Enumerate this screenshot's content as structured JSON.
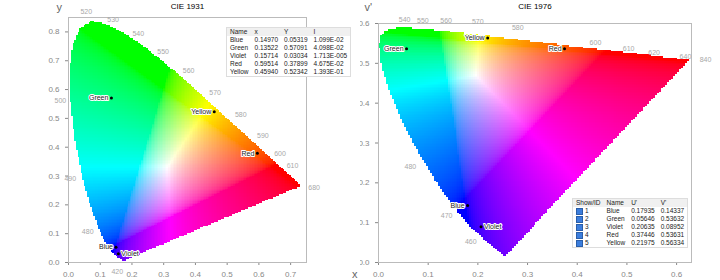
{
  "chart_data": [
    {
      "type": "scatter",
      "title": "CIE 1931",
      "x_label": "x",
      "y_label": "y",
      "xlim": [
        0,
        0.75
      ],
      "ylim": [
        0,
        0.85
      ],
      "xticks": [
        {
          "value": 0,
          "label": "0.0"
        },
        0.1,
        0.2,
        0.3,
        0.4,
        0.5,
        0.6,
        0.7
      ],
      "yticks": [
        {
          "value": 0,
          "label": "0.0"
        },
        0.1,
        0.2,
        0.3,
        0.4,
        0.5,
        0.6,
        0.7,
        0.8
      ],
      "locus": {
        "x": [
          0.1741,
          0.1714,
          0.1644,
          0.144,
          0.1355,
          0.1241,
          0.1096,
          0.0913,
          0.0687,
          0.0454,
          0.0235,
          0.0082,
          0.0039,
          0.0139,
          0.0389,
          0.0743,
          0.1142,
          0.1547,
          0.2296,
          0.3016,
          0.3731,
          0.4441,
          0.5125,
          0.5752,
          0.627,
          0.6658,
          0.6915,
          0.719,
          0.7347
        ],
        "y": [
          0.005,
          0.0051,
          0.0109,
          0.0297,
          0.0399,
          0.0578,
          0.0868,
          0.1327,
          0.2007,
          0.295,
          0.4127,
          0.5384,
          0.6548,
          0.7502,
          0.812,
          0.8338,
          0.8262,
          0.8059,
          0.7543,
          0.6923,
          0.6245,
          0.5547,
          0.4866,
          0.4242,
          0.3725,
          0.334,
          0.3083,
          0.2809,
          0.2653
        ]
      },
      "wavelength_labels": [
        {
          "value": 420,
          "x": 0.1714,
          "y": 0.0051
        },
        {
          "value": 480,
          "x": 0.0913,
          "y": 0.1327
        },
        {
          "value": 490,
          "x": 0.0454,
          "y": 0.295
        },
        {
          "value": 500,
          "x": 0.0082,
          "y": 0.5384
        },
        {
          "value": 520,
          "x": 0.0743,
          "y": 0.8338
        },
        {
          "value": 530,
          "x": 0.1547,
          "y": 0.8059
        },
        {
          "value": 540,
          "x": 0.2296,
          "y": 0.7543
        },
        {
          "value": 550,
          "x": 0.3016,
          "y": 0.6923
        },
        {
          "value": 560,
          "x": 0.3731,
          "y": 0.6245
        },
        {
          "value": 570,
          "x": 0.4441,
          "y": 0.5547
        },
        {
          "value": 580,
          "x": 0.5125,
          "y": 0.4866
        },
        {
          "value": 590,
          "x": 0.5752,
          "y": 0.4242
        },
        {
          "value": 600,
          "x": 0.627,
          "y": 0.3725
        },
        {
          "value": 610,
          "x": 0.6658,
          "y": 0.334
        },
        {
          "value": 680,
          "x": 0.7347,
          "y": 0.2653
        }
      ],
      "points": [
        {
          "name": "Blue",
          "x": 0.1497,
          "y": 0.05319
        },
        {
          "name": "Green",
          "x": 0.13522,
          "y": 0.57091
        },
        {
          "name": "Violet",
          "x": 0.15714,
          "y": 0.03034
        },
        {
          "name": "Red",
          "x": 0.59514,
          "y": 0.37899
        },
        {
          "name": "Yellow",
          "x": 0.4594,
          "y": 0.52342
        }
      ],
      "table": {
        "columns": [
          "Name",
          "x",
          "Y",
          "I"
        ],
        "rows": [
          [
            "Blue",
            "0.14970",
            "0.05319",
            "1.099E-02"
          ],
          [
            "Green",
            "0.13522",
            "0.57091",
            "4.098E-02"
          ],
          [
            "Violet",
            "0.15714",
            "0.03034",
            "1.713E-005"
          ],
          [
            "Red",
            "0.59514",
            "0.37899",
            "4.675E-02"
          ],
          [
            "Yellow",
            "0.45940",
            "0.52342",
            "1.393E-01"
          ]
        ]
      }
    },
    {
      "type": "scatter",
      "title": "CIE 1976",
      "y_label": "v'",
      "xlim": [
        0,
        0.63
      ],
      "ylim": [
        0,
        0.6
      ],
      "xticks": [
        {
          "value": 0,
          "label": "0.0"
        },
        0.1,
        0.2,
        0.3,
        0.4,
        0.5,
        0.6
      ],
      "yticks": [
        {
          "value": 0,
          "label": "0.0"
        },
        0.1,
        0.2,
        0.3,
        0.4,
        0.5,
        0.6
      ],
      "locus": {
        "x": [
          0.2568,
          0.2522,
          0.2347,
          0.1877,
          0.1441,
          0.1147,
          0.0828,
          0.0521,
          0.0282,
          0.0119,
          0.0035,
          0.0014,
          0.0046,
          0.0123,
          0.0231,
          0.036,
          0.0501,
          0.0792,
          0.1127,
          0.1531,
          0.2026,
          0.2623,
          0.3315,
          0.4035,
          0.4692,
          0.5203,
          0.583,
          0.6234
        ],
        "y": [
          0.0166,
          0.0169,
          0.035,
          0.0871,
          0.151,
          0.2044,
          0.2708,
          0.3427,
          0.4117,
          0.4698,
          0.5131,
          0.5432,
          0.5638,
          0.577,
          0.5837,
          0.5861,
          0.5868,
          0.5856,
          0.5821,
          0.5766,
          0.5694,
          0.5604,
          0.5501,
          0.5393,
          0.5296,
          0.5219,
          0.5125,
          0.5065
        ]
      },
      "wavelength_labels": [
        {
          "value": 460,
          "x": 0.1877,
          "y": 0.0871
        },
        {
          "value": 470,
          "x": 0.1441,
          "y": 0.151
        },
        {
          "value": 480,
          "x": 0.0828,
          "y": 0.2708
        },
        {
          "value": 540,
          "x": 0.0792,
          "y": 0.5856
        },
        {
          "value": 550,
          "x": 0.1127,
          "y": 0.5821
        },
        {
          "value": 560,
          "x": 0.1531,
          "y": 0.5766
        },
        {
          "value": 570,
          "x": 0.2026,
          "y": 0.5694
        },
        {
          "value": 580,
          "x": 0.2623,
          "y": 0.5604
        },
        {
          "value": 600,
          "x": 0.4035,
          "y": 0.5393
        },
        {
          "value": 610,
          "x": 0.4692,
          "y": 0.5296
        },
        {
          "value": 620,
          "x": 0.5203,
          "y": 0.5219
        },
        {
          "value": 640,
          "x": 0.583,
          "y": 0.5125
        },
        {
          "value": 840,
          "x": 0.6234,
          "y": 0.5065
        }
      ],
      "points": [
        {
          "name": "Blue",
          "x": 0.17935,
          "y": 0.14337
        },
        {
          "name": "Green",
          "x": 0.05646,
          "y": 0.53632
        },
        {
          "name": "Violet",
          "x": 0.20635,
          "y": 0.08952
        },
        {
          "name": "Red",
          "x": 0.37446,
          "y": 0.53631
        },
        {
          "name": "Yellow",
          "x": 0.21975,
          "y": 0.56334
        }
      ],
      "table": {
        "columns": [
          "Show/ID",
          "Name",
          "U'",
          "V'"
        ],
        "rows": [
          [
            "1",
            "Blue",
            "0.17935",
            "0.14337"
          ],
          [
            "2",
            "Green",
            "0.05646",
            "0.53632"
          ],
          [
            "3",
            "Violet",
            "0.20635",
            "0.08952"
          ],
          [
            "4",
            "Red",
            "0.37446",
            "0.53631"
          ],
          [
            "5",
            "Yellow",
            "0.21975",
            "0.56334"
          ]
        ]
      }
    }
  ]
}
